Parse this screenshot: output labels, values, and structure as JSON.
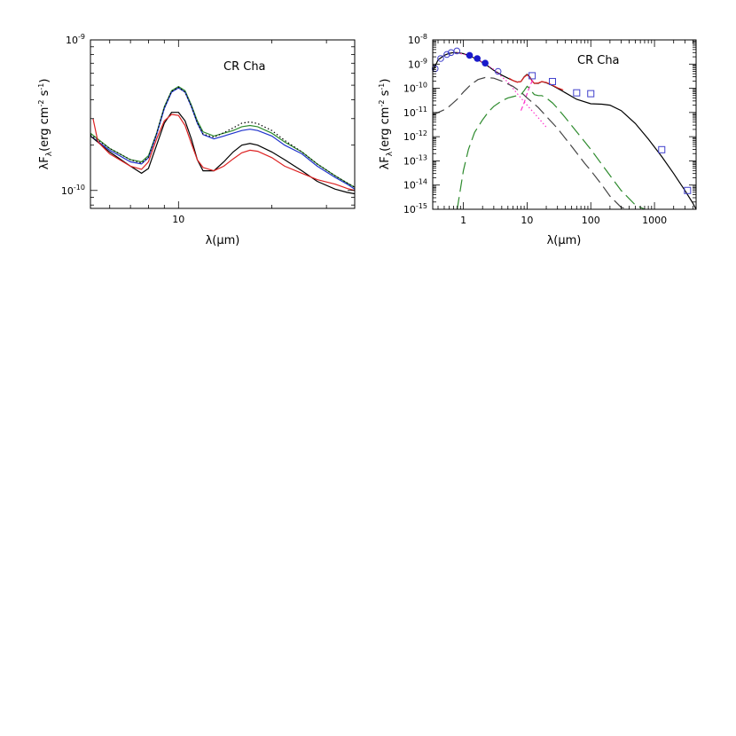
{
  "chart_data": [
    {
      "type": "line",
      "annotation": "CR Cha",
      "xlabel": "λ(μm)",
      "ylabel": "λF",
      "ylabel_sub": "λ",
      "ylabel_units": "(erg cm",
      "ylabel_units_sup1": "-2",
      "ylabel_units_mid": " s",
      "ylabel_units_sup2": "-1",
      "ylabel_units_end": ")",
      "x_scale": "log",
      "y_scale": "log",
      "xlim": [
        5.2,
        37
      ],
      "ylim": [
        7.6e-11,
        1e-09
      ],
      "x_ticks_labeled": [
        {
          "value": 10,
          "label": "10"
        }
      ],
      "y_ticks_labeled": [
        {
          "value": 1e-10,
          "base": "10",
          "exp": "-10"
        },
        {
          "value": 1e-09,
          "base": "10",
          "exp": "-9"
        }
      ],
      "series": [
        {
          "color": "#2e8b2e",
          "style": "solid",
          "x": [
            5.2,
            6,
            7,
            7.6,
            8,
            8.5,
            9,
            9.5,
            10,
            10.5,
            11,
            11.5,
            12,
            13,
            14,
            15,
            16,
            17,
            18,
            20,
            22,
            25,
            28,
            32,
            35,
            37
          ],
          "y": [
            2.4e-10,
            1.9e-10,
            1.6e-10,
            1.55e-10,
            1.7e-10,
            2.4e-10,
            3.6e-10,
            4.6e-10,
            4.9e-10,
            4.6e-10,
            3.7e-10,
            2.9e-10,
            2.45e-10,
            2.3e-10,
            2.4e-10,
            2.5e-10,
            2.65e-10,
            2.7e-10,
            2.65e-10,
            2.4e-10,
            2.1e-10,
            1.8e-10,
            1.5e-10,
            1.25e-10,
            1.12e-10,
            1.05e-10
          ]
        },
        {
          "color": "#1f33cc",
          "style": "solid",
          "x": [
            5.2,
            6,
            7,
            7.6,
            8,
            8.5,
            9,
            9.5,
            10,
            10.5,
            11,
            11.5,
            12,
            13,
            14,
            15,
            16,
            17,
            18,
            20,
            22,
            25,
            28,
            32,
            35,
            37
          ],
          "y": [
            2.3e-10,
            1.85e-10,
            1.55e-10,
            1.5e-10,
            1.65e-10,
            2.35e-10,
            3.5e-10,
            4.5e-10,
            4.8e-10,
            4.5e-10,
            3.6e-10,
            2.8e-10,
            2.35e-10,
            2.2e-10,
            2.3e-10,
            2.4e-10,
            2.5e-10,
            2.55e-10,
            2.5e-10,
            2.3e-10,
            2e-10,
            1.75e-10,
            1.45e-10,
            1.22e-10,
            1.1e-10,
            1.02e-10
          ]
        },
        {
          "color": "#000000",
          "style": "dotted",
          "x": [
            5.2,
            6,
            7,
            7.6,
            8,
            8.5,
            9,
            9.5,
            10,
            10.5,
            11,
            11.5,
            12,
            13,
            14,
            15,
            16,
            17,
            18,
            20,
            22,
            25,
            28,
            32,
            35,
            37
          ],
          "y": [
            2.35e-10,
            1.9e-10,
            1.6e-10,
            1.52e-10,
            1.66e-10,
            2.38e-10,
            3.55e-10,
            4.55e-10,
            4.85e-10,
            4.5e-10,
            3.62e-10,
            2.82e-10,
            2.37e-10,
            2.26e-10,
            2.42e-10,
            2.6e-10,
            2.8e-10,
            2.85e-10,
            2.78e-10,
            2.5e-10,
            2.15e-10,
            1.8e-10,
            1.5e-10,
            1.25e-10,
            1.12e-10,
            1.05e-10
          ]
        },
        {
          "color": "#000000",
          "style": "solid",
          "x": [
            5.2,
            6,
            7,
            7.6,
            8,
            8.5,
            9,
            9.5,
            10,
            10.5,
            11,
            11.5,
            12,
            13,
            14,
            15,
            16,
            17,
            18,
            20,
            22,
            25,
            28,
            32,
            35,
            37
          ],
          "y": [
            2.3e-10,
            1.8e-10,
            1.45e-10,
            1.3e-10,
            1.4e-10,
            2e-10,
            2.8e-10,
            3.3e-10,
            3.3e-10,
            2.9e-10,
            2.2e-10,
            1.6e-10,
            1.35e-10,
            1.35e-10,
            1.55e-10,
            1.8e-10,
            2e-10,
            2.05e-10,
            2e-10,
            1.8e-10,
            1.6e-10,
            1.35e-10,
            1.15e-10,
            1.02e-10,
            9.7e-11,
            9.5e-11
          ]
        },
        {
          "color": "#dd2222",
          "style": "solid",
          "x": [
            5.3,
            5.5,
            6,
            7,
            7.6,
            8,
            8.5,
            9,
            9.5,
            10,
            10.5,
            11,
            11.5,
            12,
            13,
            14,
            15,
            16,
            17,
            18,
            20,
            22,
            25,
            28,
            32,
            35,
            37
          ],
          "y": [
            3e-10,
            2.1e-10,
            1.75e-10,
            1.45e-10,
            1.38e-10,
            1.55e-10,
            2.2e-10,
            2.9e-10,
            3.2e-10,
            3.15e-10,
            2.7e-10,
            2.05e-10,
            1.6e-10,
            1.42e-10,
            1.35e-10,
            1.45e-10,
            1.62e-10,
            1.78e-10,
            1.85e-10,
            1.82e-10,
            1.65e-10,
            1.45e-10,
            1.3e-10,
            1.18e-10,
            1.1e-10,
            1.03e-10,
            1e-10
          ]
        }
      ]
    },
    {
      "type": "line",
      "annotation": "CR Cha",
      "xlabel": "λ(μm)",
      "ylabel": "λF",
      "ylabel_sub": "λ",
      "ylabel_units": "(erg cm",
      "ylabel_units_sup1": "-2",
      "ylabel_units_mid": " s",
      "ylabel_units_sup2": "-1",
      "ylabel_units_end": ")",
      "x_scale": "log",
      "y_scale": "log",
      "xlim": [
        0.33,
        4500
      ],
      "ylim": [
        1e-15,
        1e-08
      ],
      "x_ticks_labeled": [
        {
          "value": 1,
          "label": "1"
        },
        {
          "value": 10,
          "label": "10"
        },
        {
          "value": 100,
          "label": "100"
        },
        {
          "value": 1000,
          "label": "1000"
        }
      ],
      "y_ticks_labeled": [
        {
          "value": 1e-08,
          "base": "10",
          "exp": "-8"
        },
        {
          "value": 1e-09,
          "base": "10",
          "exp": "-9"
        },
        {
          "value": 1e-10,
          "base": "10",
          "exp": "-10"
        },
        {
          "value": 1e-11,
          "base": "10",
          "exp": "-11"
        },
        {
          "value": 1e-12,
          "base": "10",
          "exp": "-12"
        },
        {
          "value": 1e-13,
          "base": "10",
          "exp": "-13"
        },
        {
          "value": 1e-14,
          "base": "10",
          "exp": "-14"
        },
        {
          "value": 1e-15,
          "base": "10",
          "exp": "-15"
        }
      ],
      "series": [
        {
          "color": "#000000",
          "style": "solid",
          "x": [
            0.33,
            0.4,
            0.5,
            0.6,
            0.7,
            0.8,
            1,
            1.3,
            1.7,
            2.2,
            3,
            4,
            5,
            6,
            7,
            8,
            9,
            10,
            11,
            12,
            13,
            15,
            17,
            20,
            25,
            30,
            40,
            60,
            100,
            150,
            200,
            300,
            500,
            800,
            1300,
            2000,
            3000,
            4000,
            4500
          ],
          "y": [
            5e-10,
            1.5e-09,
            2.3e-09,
            2.8e-09,
            3e-09,
            3e-09,
            2.7e-09,
            2.1e-09,
            1.5e-09,
            1e-09,
            5.5e-10,
            3.5e-10,
            2.6e-10,
            2.1e-10,
            1.8e-10,
            1.9e-10,
            3e-10,
            3.8e-10,
            3e-10,
            2e-10,
            1.6e-10,
            1.6e-10,
            1.9e-10,
            1.7e-10,
            1.3e-10,
            1e-10,
            6.5e-11,
            3.5e-11,
            2.3e-11,
            2.2e-11,
            2e-11,
            1.2e-11,
            3.5e-12,
            8e-13,
            1.5e-13,
            3e-14,
            6e-15,
            1.8e-15,
            1e-15
          ]
        },
        {
          "color": "#dd2222",
          "style": "solid",
          "x": [
            5.2,
            6,
            7,
            8,
            9,
            10,
            11,
            12,
            13,
            15,
            17,
            20,
            25,
            30,
            35,
            37
          ],
          "y": [
            2.6e-10,
            2.1e-10,
            1.8e-10,
            1.9e-10,
            2.9e-10,
            3.6e-10,
            2.9e-10,
            2e-10,
            1.6e-10,
            1.65e-10,
            1.9e-10,
            1.75e-10,
            1.35e-10,
            1.05e-10,
            9e-11,
            8.5e-11
          ]
        },
        {
          "color": "#ff33cc",
          "style": "dotted",
          "x": [
            0.7,
            1,
            1.5,
            2,
            3,
            4,
            5,
            7,
            10,
            15,
            20
          ],
          "y": [
            3e-09,
            2.6e-09,
            1.8e-09,
            1.2e-09,
            6e-10,
            3e-10,
            1.8e-10,
            6e-11,
            2e-11,
            6e-12,
            2.5e-12
          ]
        },
        {
          "color": "#ff33cc",
          "style": "dashed",
          "x": [
            8,
            9,
            10,
            11,
            12,
            13
          ],
          "y": [
            1.2e-11,
            2.5e-11,
            6e-11,
            1.2e-10,
            2e-10,
            2.5e-10
          ]
        },
        {
          "color": "#444444",
          "style": "longdash",
          "x": [
            0.33,
            0.4,
            0.5,
            0.6,
            0.8,
            1,
            1.3,
            1.7,
            2.2,
            3,
            4,
            6,
            8,
            10,
            15,
            20,
            30,
            50,
            80,
            100,
            150,
            200,
            300,
            400
          ],
          "y": [
            8e-12,
            1e-11,
            1.3e-11,
            1.8e-11,
            3.5e-11,
            7e-11,
            1.4e-10,
            2.3e-10,
            2.8e-10,
            2.6e-10,
            2e-10,
            1.2e-10,
            7e-11,
            4e-11,
            1.6e-11,
            7e-12,
            2.2e-12,
            4e-13,
            8e-14,
            4e-14,
            1e-14,
            3.5e-15,
            1.2e-15,
            1e-15
          ]
        },
        {
          "color": "#2e8b2e",
          "style": "longdash",
          "x": [
            0.8,
            1,
            1.2,
            1.5,
            2,
            2.5,
            3,
            4,
            5,
            6,
            7,
            8,
            9,
            10,
            11,
            12,
            13,
            15,
            17,
            20,
            25,
            30,
            40,
            60,
            100,
            150,
            200,
            300,
            500,
            700
          ],
          "y": [
            1e-15,
            4e-14,
            3e-13,
            1.5e-12,
            5e-12,
            1.1e-11,
            1.8e-11,
            3e-11,
            4e-11,
            4.5e-11,
            5e-11,
            5.5e-11,
            8e-11,
            1.2e-10,
            1e-10,
            7e-11,
            5.5e-11,
            5e-11,
            5e-11,
            4e-11,
            2.5e-11,
            1.5e-11,
            6e-12,
            1.6e-12,
            3e-13,
            7e-14,
            2.5e-14,
            6e-15,
            1.5e-15,
            1e-15
          ]
        }
      ],
      "points_open_circle": {
        "color": "#4040cc",
        "x": [
          0.36,
          0.44,
          0.55,
          0.64,
          0.79,
          3.5
        ],
        "y": [
          6.5e-10,
          1.7e-09,
          2.5e-09,
          3e-09,
          3.5e-09,
          5e-10
        ]
      },
      "points_filled_circle": {
        "color": "#1a1acc",
        "x": [
          1.25,
          1.65,
          2.2
        ],
        "y": [
          2.3e-09,
          1.7e-09,
          1.1e-09
        ]
      },
      "points_open_square": {
        "color": "#4040cc",
        "x": [
          12,
          25,
          60,
          100,
          1300,
          3300
        ],
        "y": [
          3.3e-10,
          1.9e-10,
          6.5e-11,
          6e-11,
          2.9e-13,
          6e-15
        ]
      }
    }
  ]
}
